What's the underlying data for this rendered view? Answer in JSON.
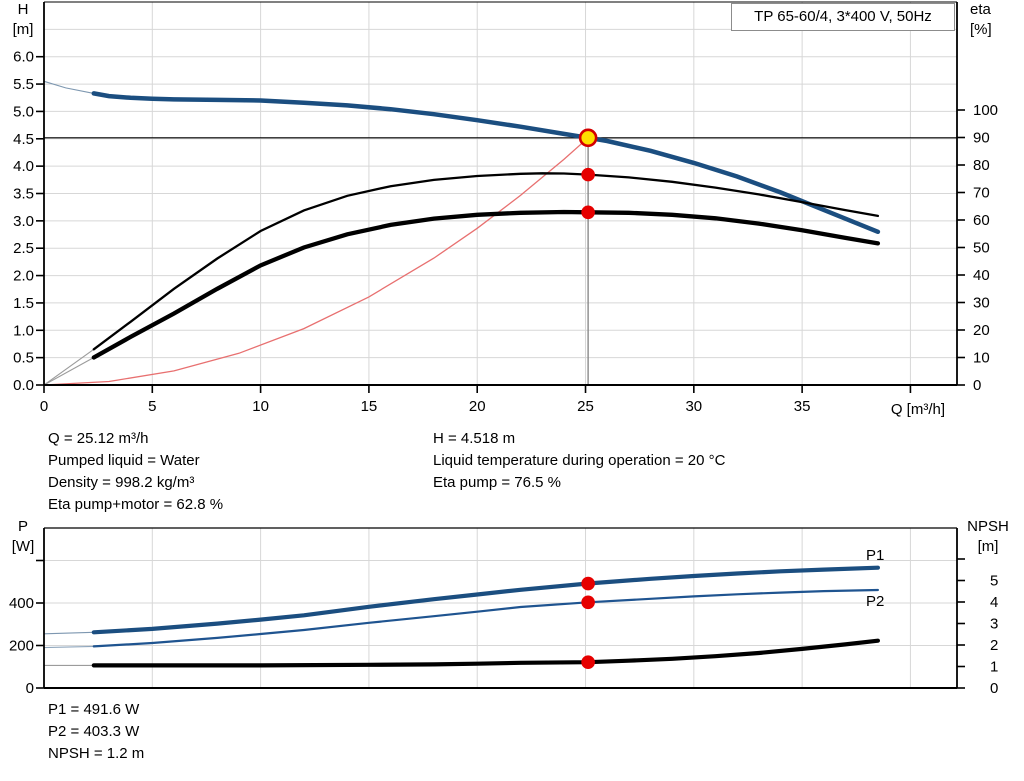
{
  "title_box": "TP 65-60/4, 3*400 V, 50Hz",
  "annotations": {
    "top_left": [
      "Q = 25.12 m³/h",
      "Pumped liquid = Water",
      "Density = 998.2 kg/m³",
      "Eta pump+motor = 62.8 %"
    ],
    "top_right": [
      "H = 4.518 m",
      "Liquid temperature during operation = 20 °C",
      "Eta pump = 76.5 %"
    ],
    "bottom_left": [
      "P1 = 491.6 W",
      "P2 = 403.3 W",
      "NPSH = 1.2 m"
    ]
  },
  "colors": {
    "curve_blue": "#1b4e80",
    "label_blue": "#2a5da8",
    "marker_red": "#e60000",
    "duty_fill_yellow": "#ffdf00",
    "duty_ring_red": "#d40000",
    "system_curve_red": "#e87070",
    "gridline_gray": "#d7d7d7",
    "duty_vline_gray": "#8a8a8a"
  },
  "chart_data": [
    {
      "type": "line",
      "name": "head-efficiency-chart",
      "x_axis": {
        "label": "Q [m³/h]",
        "ticks": [
          0,
          5,
          10,
          15,
          20,
          25,
          30,
          35
        ],
        "unlabeled_ticks": [
          40
        ],
        "gridlines": [
          5,
          10,
          15,
          20,
          25,
          30,
          35,
          40
        ],
        "range": [
          0,
          42.15
        ]
      },
      "left_axis": {
        "title": [
          "H",
          "[m]"
        ],
        "ticks": [
          0,
          0.5,
          1,
          1.5,
          2,
          2.5,
          3,
          3.5,
          4,
          4.5,
          5,
          5.5,
          6
        ],
        "gridlines": [
          0.5,
          1,
          1.5,
          2,
          2.5,
          3,
          3.5,
          4,
          4.5,
          5,
          5.5,
          6,
          6.5
        ],
        "range": [
          0,
          7.0
        ],
        "tick_format": "fixed1"
      },
      "right_axis": {
        "title": [
          "eta",
          "[%]"
        ],
        "ticks": [
          0,
          10,
          20,
          30,
          40,
          50,
          60,
          70,
          80,
          90,
          100
        ],
        "range": [
          0,
          139
        ]
      },
      "series": [
        {
          "name": "head",
          "label": "",
          "axis": "left",
          "color": "#1b4e80",
          "thin_color": "#7d97b0",
          "width": 4.5,
          "thin_until": 2.3,
          "x": [
            0,
            1,
            2.3,
            3,
            4,
            5,
            6,
            8,
            10,
            12,
            14,
            16,
            18,
            20,
            22,
            24,
            25.12,
            26,
            28,
            30,
            32,
            34,
            36,
            38.5
          ],
          "y": [
            5.55,
            5.43,
            5.33,
            5.28,
            5.25,
            5.23,
            5.22,
            5.21,
            5.2,
            5.16,
            5.11,
            5.04,
            4.95,
            4.84,
            4.72,
            4.59,
            4.518,
            4.46,
            4.28,
            4.06,
            3.81,
            3.52,
            3.2,
            2.8
          ]
        },
        {
          "name": "system-curve",
          "label": "",
          "axis": "left",
          "color": "#e87070",
          "width": 1.3,
          "x": [
            0,
            3,
            6,
            9,
            12,
            15,
            18,
            20,
            22,
            24,
            25.12
          ],
          "y": [
            0,
            0.064,
            0.258,
            0.58,
            1.031,
            1.611,
            2.32,
            2.864,
            3.465,
            4.124,
            4.518
          ]
        },
        {
          "name": "eta-pump",
          "label": "",
          "axis": "right",
          "color": "#000000",
          "thin_color": "#9b9b9b",
          "width": 2.3,
          "thin_until": 2.3,
          "x": [
            0,
            2.3,
            4,
            6,
            8,
            10,
            12,
            14,
            16,
            18,
            20,
            22,
            23,
            24,
            25.12,
            27,
            29,
            31,
            33,
            35,
            37,
            38.5
          ],
          "y": [
            0,
            13,
            23,
            35,
            46,
            56,
            63.5,
            68.8,
            72.3,
            74.6,
            76,
            76.8,
            77,
            76.9,
            76.5,
            75.5,
            73.9,
            71.8,
            69.3,
            66.5,
            63.6,
            61.5
          ]
        },
        {
          "name": "eta-pump-motor",
          "label": "",
          "axis": "right",
          "color": "#000000",
          "thin_color": "#9b9b9b",
          "width": 4.3,
          "thin_until": 2.3,
          "x": [
            0,
            2.3,
            4,
            6,
            8,
            10,
            12,
            14,
            16,
            18,
            20,
            22,
            24,
            25.12,
            27,
            29,
            31,
            33,
            35,
            37,
            38.5
          ],
          "y": [
            0,
            10,
            17.5,
            26,
            35,
            43.5,
            50,
            54.8,
            58.2,
            60.5,
            61.9,
            62.6,
            62.9,
            62.8,
            62.6,
            61.9,
            60.6,
            58.7,
            56.3,
            53.5,
            51.5
          ]
        }
      ],
      "duty_point": {
        "q": 25.12,
        "h": 4.518
      },
      "duty_dots": [
        {
          "series": "eta-pump",
          "q": 25.12,
          "value": 76.5
        },
        {
          "series": "eta-pump-motor",
          "q": 25.12,
          "value": 62.8
        }
      ]
    },
    {
      "type": "line",
      "name": "power-npsh-chart",
      "x_axis": {
        "label": "",
        "ticks": [],
        "unlabeled_ticks": [],
        "gridlines": [
          5,
          10,
          15,
          20,
          25,
          30,
          35,
          40
        ],
        "range": [
          0,
          42.15
        ]
      },
      "left_axis": {
        "title": [
          "P",
          "[W]"
        ],
        "ticks": [
          0,
          200,
          400
        ],
        "unlabeled_ticks": [
          600
        ],
        "gridlines": [
          200,
          400,
          600
        ],
        "range": [
          0,
          753
        ]
      },
      "right_axis": {
        "title": [
          "NPSH",
          "[m]"
        ],
        "ticks": [
          0,
          1,
          2,
          3,
          4,
          5
        ],
        "unlabeled_ticks": [
          6
        ],
        "range": [
          0,
          7.4
        ]
      },
      "series": [
        {
          "name": "p1",
          "label": "P1",
          "axis": "left",
          "color": "#1b4e80",
          "thin_color": "#7d97b0",
          "width": 4.2,
          "thin_until": 2.3,
          "x": [
            0,
            2.3,
            5,
            8,
            10,
            12,
            15,
            18,
            20,
            22,
            25.12,
            28,
            30,
            32,
            34,
            36,
            38.5
          ],
          "y": [
            255,
            262,
            278,
            303,
            322,
            342,
            382,
            418,
            440,
            462,
            491.6,
            514,
            527,
            539,
            549,
            557,
            566
          ]
        },
        {
          "name": "p2",
          "label": "P2",
          "axis": "left",
          "color": "#1f5490",
          "thin_color": "#8fa6bd",
          "width": 2.2,
          "thin_until": 2.3,
          "x": [
            0,
            2.3,
            5,
            8,
            10,
            12,
            15,
            18,
            20,
            22,
            25.12,
            28,
            30,
            32,
            34,
            36,
            38.5
          ],
          "y": [
            190,
            196,
            212,
            236,
            254,
            273,
            307,
            338,
            359,
            381,
            403.3,
            420,
            431,
            441,
            449,
            456,
            461
          ]
        },
        {
          "name": "npsh",
          "label": "",
          "axis": "right",
          "color": "#000000",
          "thin_color": "#9b9b9b",
          "width": 4.2,
          "thin_until": 2.3,
          "x": [
            0,
            2.3,
            5,
            10,
            15,
            18,
            20,
            22,
            25.12,
            27,
            29,
            31,
            33,
            35,
            37,
            38.5
          ],
          "y": [
            1.05,
            1.05,
            1.05,
            1.05,
            1.08,
            1.1,
            1.13,
            1.17,
            1.2,
            1.27,
            1.36,
            1.48,
            1.63,
            1.82,
            2.03,
            2.2
          ]
        }
      ],
      "duty_dots": [
        {
          "series": "p1",
          "q": 25.12,
          "value": 491.6
        },
        {
          "series": "p2",
          "q": 25.12,
          "value": 403.3
        },
        {
          "series": "npsh",
          "q": 25.12,
          "value": 1.2
        }
      ]
    }
  ]
}
